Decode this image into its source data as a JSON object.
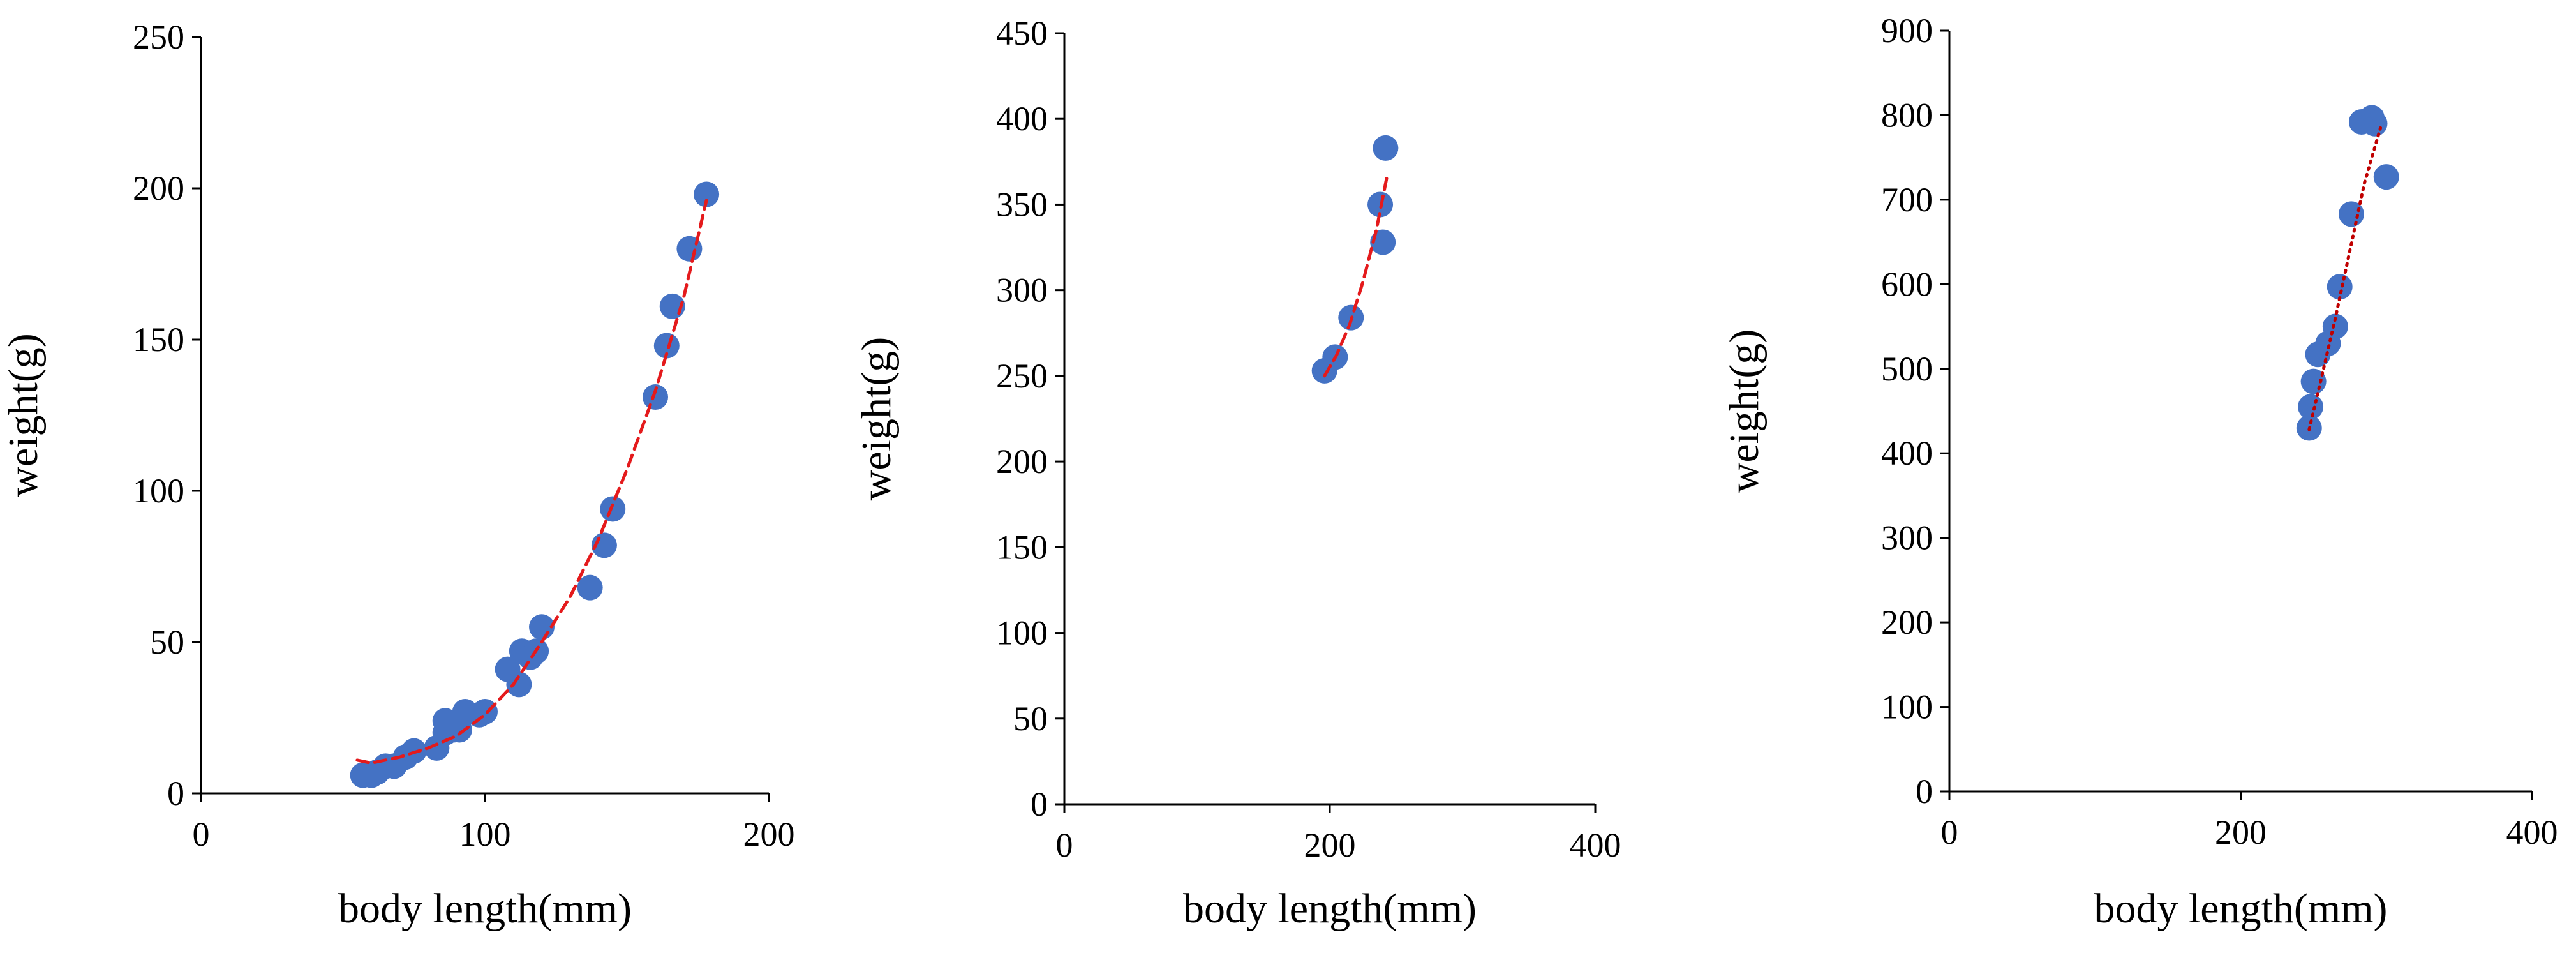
{
  "chart_data": [
    {
      "type": "scatter",
      "xlabel": "body length(mm)",
      "ylabel": "weight(g)",
      "xlim": [
        0,
        200
      ],
      "ylim": [
        0,
        250
      ],
      "xticks": [
        0,
        100,
        200
      ],
      "yticks": [
        0,
        50,
        100,
        150,
        200,
        250
      ],
      "grid": false,
      "marker_color": "#4472C4",
      "trend_color": "#E41A1C",
      "trend_style": "dashed",
      "points": [
        [
          57,
          6
        ],
        [
          60,
          6
        ],
        [
          62,
          7
        ],
        [
          65,
          9
        ],
        [
          68,
          9
        ],
        [
          72,
          12
        ],
        [
          75,
          14
        ],
        [
          83,
          15
        ],
        [
          86,
          20
        ],
        [
          86,
          24
        ],
        [
          89,
          21
        ],
        [
          91,
          21
        ],
        [
          93,
          27
        ],
        [
          98,
          26
        ],
        [
          100,
          27
        ],
        [
          108,
          41
        ],
        [
          112,
          36
        ],
        [
          113,
          47
        ],
        [
          116,
          45
        ],
        [
          118,
          47
        ],
        [
          120,
          55
        ],
        [
          137,
          68
        ],
        [
          142,
          82
        ],
        [
          145,
          94
        ],
        [
          160,
          131
        ],
        [
          164,
          148
        ],
        [
          166,
          161
        ],
        [
          172,
          180
        ],
        [
          178,
          198
        ]
      ],
      "trend": [
        [
          55,
          11
        ],
        [
          60,
          10
        ],
        [
          70,
          12
        ],
        [
          80,
          15
        ],
        [
          90,
          19
        ],
        [
          100,
          26
        ],
        [
          110,
          36
        ],
        [
          120,
          50
        ],
        [
          130,
          65
        ],
        [
          140,
          84
        ],
        [
          150,
          107
        ],
        [
          160,
          133
        ],
        [
          170,
          164
        ],
        [
          178,
          196
        ]
      ]
    },
    {
      "type": "scatter",
      "xlabel": "body length(mm)",
      "ylabel": "weight(g)",
      "xlim": [
        0,
        400
      ],
      "ylim": [
        0,
        450
      ],
      "xticks": [
        0,
        200,
        400
      ],
      "yticks": [
        0,
        50,
        100,
        150,
        200,
        250,
        300,
        350,
        400,
        450
      ],
      "grid": false,
      "marker_color": "#4472C4",
      "trend_color": "#E41A1C",
      "trend_style": "dashed",
      "points": [
        [
          196,
          253
        ],
        [
          204,
          261
        ],
        [
          216,
          284
        ],
        [
          238,
          350
        ],
        [
          240,
          328
        ],
        [
          242,
          383
        ]
      ],
      "trend": [
        [
          196,
          250
        ],
        [
          205,
          262
        ],
        [
          215,
          280
        ],
        [
          225,
          305
        ],
        [
          235,
          335
        ],
        [
          243,
          366
        ]
      ]
    },
    {
      "type": "scatter",
      "xlabel": "body length(mm)",
      "ylabel": "weight(g)",
      "xlim": [
        0,
        400
      ],
      "ylim": [
        0,
        900
      ],
      "xticks": [
        0,
        200,
        400
      ],
      "yticks": [
        0,
        100,
        200,
        300,
        400,
        500,
        600,
        700,
        800,
        900
      ],
      "grid": false,
      "marker_color": "#4472C4",
      "trend_color": "#C00000",
      "trend_style": "dotted",
      "points": [
        [
          247,
          430
        ],
        [
          248,
          455
        ],
        [
          250,
          485
        ],
        [
          253,
          517
        ],
        [
          260,
          530
        ],
        [
          265,
          550
        ],
        [
          268,
          597
        ],
        [
          276,
          683
        ],
        [
          283,
          792
        ],
        [
          290,
          797
        ],
        [
          292,
          790
        ],
        [
          300,
          727
        ]
      ],
      "trend": [
        [
          247,
          428
        ],
        [
          255,
          486
        ],
        [
          265,
          560
        ],
        [
          275,
          640
        ],
        [
          285,
          720
        ],
        [
          296,
          785
        ]
      ]
    }
  ]
}
